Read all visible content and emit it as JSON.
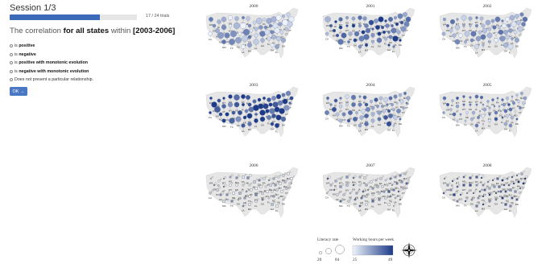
{
  "session": {
    "title": "Session 1/3",
    "progress": 0.7083,
    "trials_label": "17 / 24 trials"
  },
  "question": {
    "prefix": "The correlation ",
    "bold1": "for all states",
    "middle": " within ",
    "bold2": "[2003-2006]"
  },
  "options": [
    {
      "prefix": "is ",
      "bold": "positive",
      "suffix": ""
    },
    {
      "prefix": "is ",
      "bold": "negative",
      "suffix": ""
    },
    {
      "prefix": "is ",
      "bold": "positive with monotonic evolution",
      "suffix": ""
    },
    {
      "prefix": "is ",
      "bold": "negative with monotonic evolution",
      "suffix": ""
    },
    {
      "prefix": "Does not present a particular relationship.",
      "bold": "",
      "suffix": ""
    }
  ],
  "ok_label": "OK →",
  "maps": [
    {
      "year": "2000",
      "level": 0.3,
      "mode": "circles",
      "size": 1.0
    },
    {
      "year": "2001",
      "level": 0.7,
      "mode": "circles",
      "size": 0.9
    },
    {
      "year": "2002",
      "level": 0.35,
      "mode": "circles",
      "size": 0.85
    },
    {
      "year": "2003",
      "level": 0.9,
      "mode": "circles",
      "size": 0.95
    },
    {
      "year": "2004",
      "level": 0.5,
      "mode": "circles",
      "size": 0.75
    },
    {
      "year": "2005",
      "level": 0.45,
      "mode": "circles",
      "size": 0.55
    },
    {
      "year": "2006",
      "level": 0.2,
      "mode": "glyphs",
      "size": 0.45
    },
    {
      "year": "2007",
      "level": 0.4,
      "mode": "glyphs",
      "size": 0.5
    },
    {
      "year": "2008",
      "level": 0.75,
      "mode": "glyphs",
      "size": 0.45
    }
  ],
  "legend": {
    "literacy_title": "Literacy rate",
    "literacy_min": "20",
    "literacy_max": "84",
    "hours_title": "Working hours per week",
    "hours_min": "25",
    "hours_max": "49",
    "color_light": "#eef3fb",
    "color_dark": "#1c3a87"
  },
  "colors": {
    "progress": "#3d6ab8",
    "button": "#4a78c4",
    "land": "#e6e6e6"
  },
  "icons": {
    "compass": "compass-icon"
  }
}
